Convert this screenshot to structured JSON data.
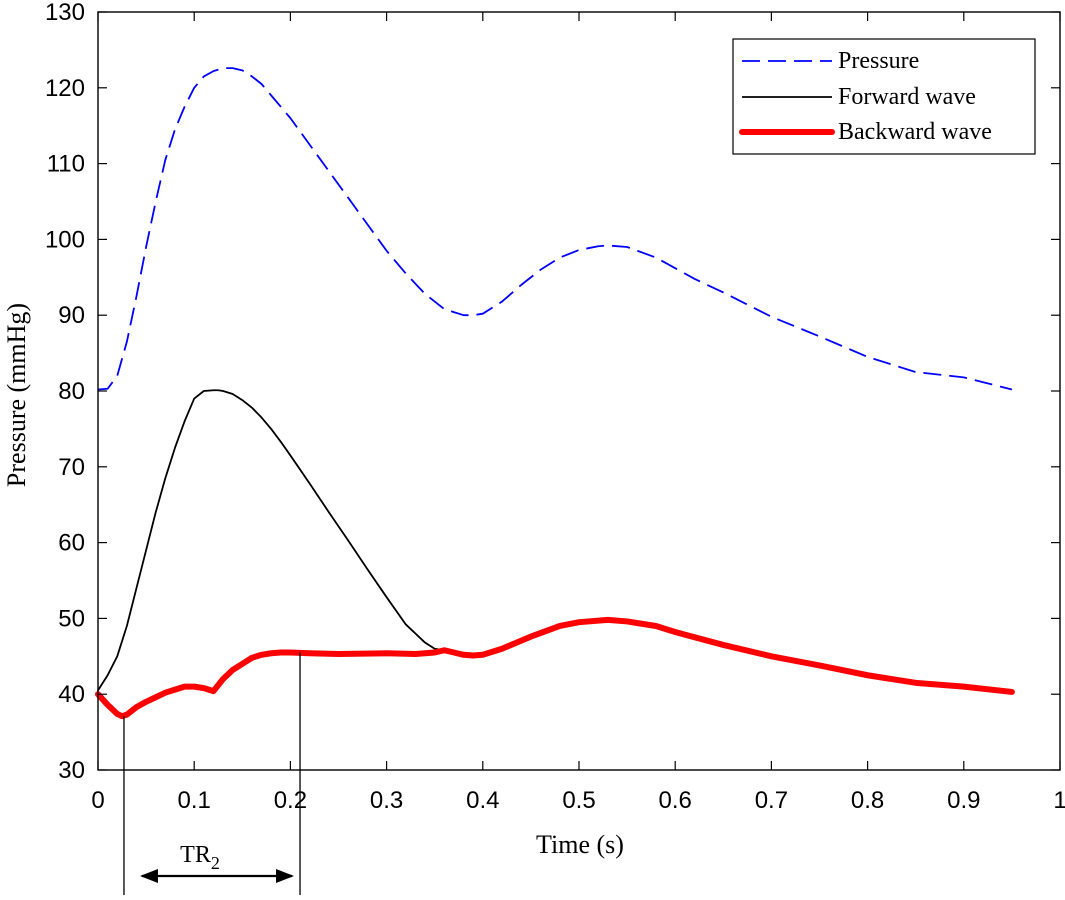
{
  "chart_data": {
    "type": "line",
    "title": "",
    "xlabel": "Time (s)",
    "ylabel": "Pressure (mmHg)",
    "xlim": [
      0,
      1
    ],
    "ylim": [
      30,
      130
    ],
    "xticks": [
      0,
      0.1,
      0.2,
      0.3,
      0.4,
      0.5,
      0.6,
      0.7,
      0.8,
      0.9,
      1
    ],
    "xtick_labels": [
      "0",
      "0.1",
      "0.2",
      "0.3",
      "0.4",
      "0.5",
      "0.6",
      "0.7",
      "0.8",
      "0.9",
      "1"
    ],
    "yticks": [
      30,
      40,
      50,
      60,
      70,
      80,
      90,
      100,
      110,
      120,
      130
    ],
    "ytick_labels": [
      "30",
      "40",
      "50",
      "60",
      "70",
      "80",
      "90",
      "100",
      "110",
      "120",
      "130"
    ],
    "grid": false,
    "legend_position": "top-right",
    "series": [
      {
        "name": "Pressure",
        "color": "#0000ff",
        "style": "dashed",
        "x": [
          0,
          0.01,
          0.02,
          0.03,
          0.04,
          0.05,
          0.06,
          0.07,
          0.08,
          0.09,
          0.1,
          0.11,
          0.12,
          0.13,
          0.14,
          0.15,
          0.16,
          0.17,
          0.18,
          0.2,
          0.22,
          0.24,
          0.26,
          0.28,
          0.3,
          0.32,
          0.34,
          0.36,
          0.38,
          0.39,
          0.4,
          0.42,
          0.44,
          0.46,
          0.48,
          0.5,
          0.52,
          0.53,
          0.55,
          0.58,
          0.6,
          0.62,
          0.65,
          0.7,
          0.75,
          0.8,
          0.85,
          0.9,
          0.95
        ],
        "y": [
          80.2,
          80.3,
          82.0,
          86.5,
          92.5,
          99.0,
          105.0,
          110.5,
          114.5,
          117.5,
          120.0,
          121.5,
          122.2,
          122.6,
          122.6,
          122.3,
          121.5,
          120.5,
          119.0,
          116.0,
          112.5,
          109.0,
          105.5,
          102.0,
          98.5,
          95.5,
          92.8,
          90.8,
          90.0,
          90.0,
          90.2,
          91.8,
          94.0,
          96.0,
          97.6,
          98.6,
          99.1,
          99.2,
          99.0,
          97.6,
          96.2,
          94.8,
          93.0,
          89.8,
          87.2,
          84.5,
          82.5,
          81.8,
          80.2
        ]
      },
      {
        "name": "Forward wave",
        "color": "#000000",
        "style": "solid",
        "x": [
          0,
          0.01,
          0.02,
          0.03,
          0.04,
          0.05,
          0.06,
          0.07,
          0.08,
          0.09,
          0.1,
          0.11,
          0.12,
          0.125,
          0.13,
          0.14,
          0.15,
          0.16,
          0.17,
          0.18,
          0.19,
          0.2,
          0.22,
          0.24,
          0.26,
          0.28,
          0.3,
          0.32,
          0.34,
          0.35,
          0.36
        ],
        "y": [
          40.5,
          42.5,
          45.0,
          49.0,
          54.0,
          59.0,
          64.0,
          68.5,
          72.5,
          76.0,
          79.0,
          80.0,
          80.1,
          80.1,
          80.0,
          79.6,
          78.8,
          77.8,
          76.5,
          75.0,
          73.3,
          71.5,
          67.8,
          64.0,
          60.3,
          56.5,
          52.8,
          49.2,
          46.8,
          46.0,
          45.8
        ]
      },
      {
        "name": "Backward wave",
        "color": "#ff0000",
        "style": "thick",
        "x": [
          0,
          0.01,
          0.02,
          0.025,
          0.03,
          0.04,
          0.05,
          0.06,
          0.07,
          0.08,
          0.09,
          0.1,
          0.11,
          0.12,
          0.13,
          0.14,
          0.15,
          0.16,
          0.17,
          0.18,
          0.19,
          0.2,
          0.22,
          0.25,
          0.3,
          0.33,
          0.35,
          0.36,
          0.37,
          0.38,
          0.39,
          0.4,
          0.42,
          0.45,
          0.48,
          0.5,
          0.53,
          0.55,
          0.58,
          0.6,
          0.65,
          0.7,
          0.75,
          0.8,
          0.85,
          0.9,
          0.95
        ],
        "y": [
          40.0,
          38.6,
          37.4,
          37.1,
          37.3,
          38.3,
          39.0,
          39.6,
          40.2,
          40.6,
          41.0,
          41.0,
          40.8,
          40.4,
          42.0,
          43.2,
          44.0,
          44.8,
          45.2,
          45.4,
          45.5,
          45.5,
          45.4,
          45.3,
          45.4,
          45.3,
          45.5,
          45.8,
          45.5,
          45.2,
          45.1,
          45.2,
          46.0,
          47.6,
          49.0,
          49.5,
          49.8,
          49.6,
          49.0,
          48.2,
          46.5,
          45.0,
          43.8,
          42.5,
          41.5,
          41.0,
          40.3
        ]
      }
    ],
    "annotations": [
      {
        "text": "TR",
        "subscript": "2",
        "x_start": 0.027,
        "x_end": 0.21
      }
    ]
  }
}
